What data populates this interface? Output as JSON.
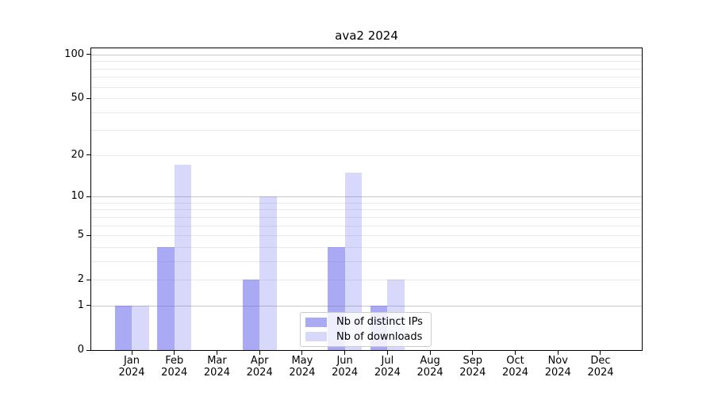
{
  "title": "ava2 2024",
  "y_axis": {
    "tick_labels": [
      "0",
      "1",
      "2",
      "5",
      "10",
      "20",
      "50",
      "100"
    ]
  },
  "x_axis": {
    "months": [
      "Jan",
      "Feb",
      "Mar",
      "Apr",
      "May",
      "Jun",
      "Jul",
      "Aug",
      "Sep",
      "Oct",
      "Nov",
      "Dec"
    ],
    "year": "2024"
  },
  "legend": {
    "items": [
      {
        "label": "Nb of distinct IPs",
        "color": "#a4a4ee",
        "fill": "rgba(100,100,235,0.55)"
      },
      {
        "label": "Nb of downloads",
        "color": "#d9d9f7",
        "fill": "rgba(110,110,235,0.27)"
      }
    ]
  },
  "chart_data": {
    "type": "bar",
    "title": "ava2 2024",
    "categories": [
      "Jan 2024",
      "Feb 2024",
      "Mar 2024",
      "Apr 2024",
      "May 2024",
      "Jun 2024",
      "Jul 2024",
      "Aug 2024",
      "Sep 2024",
      "Oct 2024",
      "Nov 2024",
      "Dec 2024"
    ],
    "series": [
      {
        "name": "Nb of distinct IPs",
        "values": [
          1,
          4,
          0,
          2,
          0,
          4,
          1,
          0,
          0,
          0,
          0,
          0
        ],
        "color": "#a4a4ee"
      },
      {
        "name": "Nb of downloads",
        "values": [
          1,
          17,
          0,
          10,
          0,
          15,
          2,
          0,
          0,
          0,
          0,
          0
        ],
        "color": "#d9d9f7"
      }
    ],
    "y_scale": "log10(1+v)",
    "y_ticks": [
      0,
      1,
      2,
      5,
      10,
      20,
      50,
      100
    ],
    "ylim": [
      0,
      113
    ],
    "grid": true,
    "grid_major_values": [
      1,
      10,
      100
    ],
    "grid_minor_values": [
      2,
      3,
      4,
      5,
      6,
      7,
      8,
      9,
      20,
      30,
      40,
      50,
      60,
      70,
      80,
      90
    ],
    "colors": {
      "grid_major": "#c6c6c6",
      "grid_minor": "#e9e9e9",
      "axis": "#000000",
      "background": "#ffffff"
    },
    "legend_position": "lower center"
  }
}
